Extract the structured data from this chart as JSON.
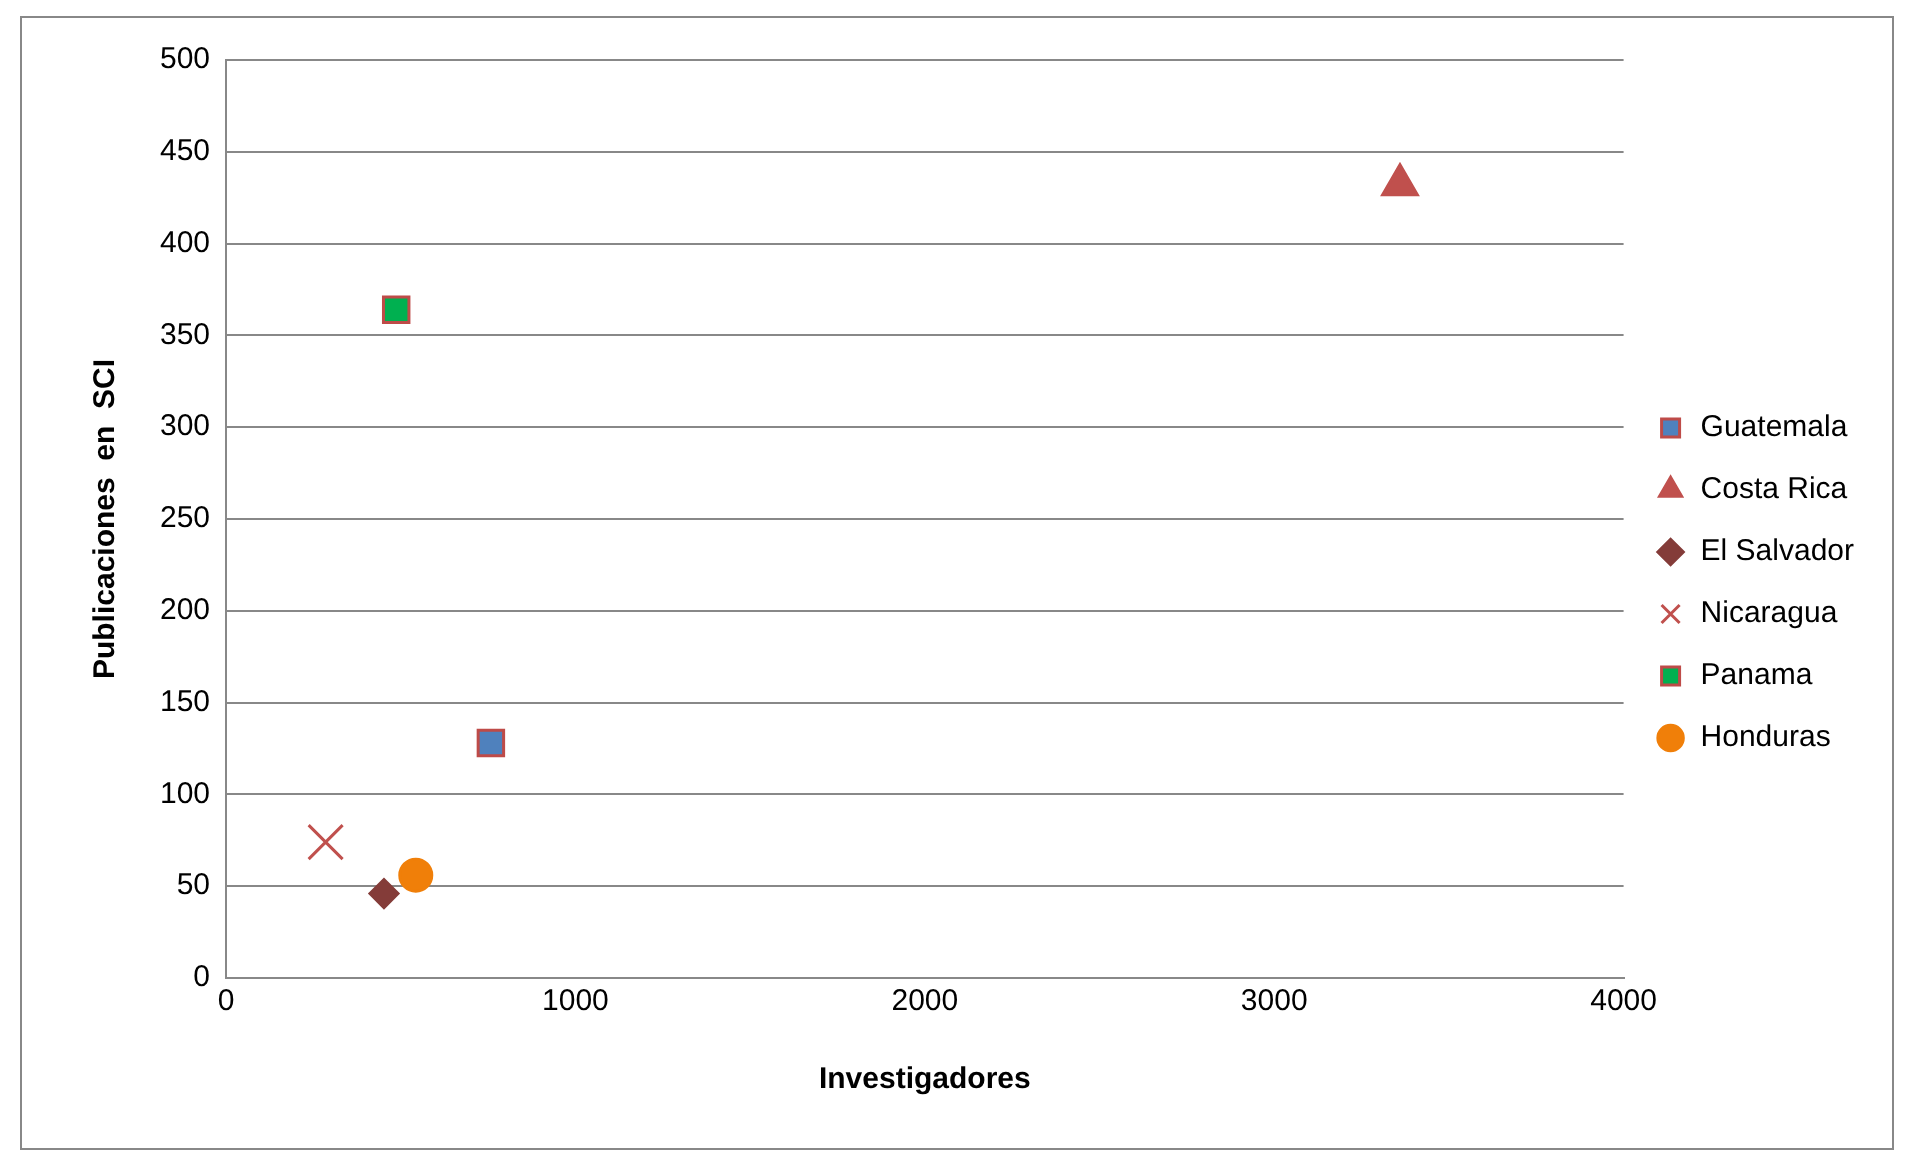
{
  "chart_data": {
    "type": "scatter",
    "xlabel": "Investigadores",
    "ylabel": "Publicaciones  en  SCI",
    "xlim": [
      0,
      4000
    ],
    "xticks": [
      0,
      1000,
      2000,
      3000,
      4000
    ],
    "ylim": [
      0,
      500
    ],
    "yticks": [
      0,
      50,
      100,
      150,
      200,
      250,
      300,
      350,
      400,
      450,
      500
    ],
    "grid": "y",
    "legend": "right",
    "series": [
      {
        "name": "Guatemala",
        "color": "#4f81bd",
        "marker": "square",
        "x": [
          758
        ],
        "values": [
          128
        ]
      },
      {
        "name": "Costa Rica",
        "color": "#c0504d",
        "marker": "triangle",
        "x": [
          3360
        ],
        "values": [
          432
        ]
      },
      {
        "name": "El Salvador",
        "color": "#843c39",
        "marker": "diamond",
        "x": [
          452
        ],
        "values": [
          46
        ]
      },
      {
        "name": "Nicaragua",
        "color": "#c0504d",
        "marker": "cross",
        "x": [
          285
        ],
        "values": [
          74
        ]
      },
      {
        "name": "Panama",
        "color": "#00b050",
        "marker": "square",
        "x": [
          487
        ],
        "values": [
          364
        ]
      },
      {
        "name": "Honduras",
        "color": "#f07f09",
        "marker": "circle",
        "x": [
          543
        ],
        "values": [
          56
        ]
      }
    ]
  }
}
